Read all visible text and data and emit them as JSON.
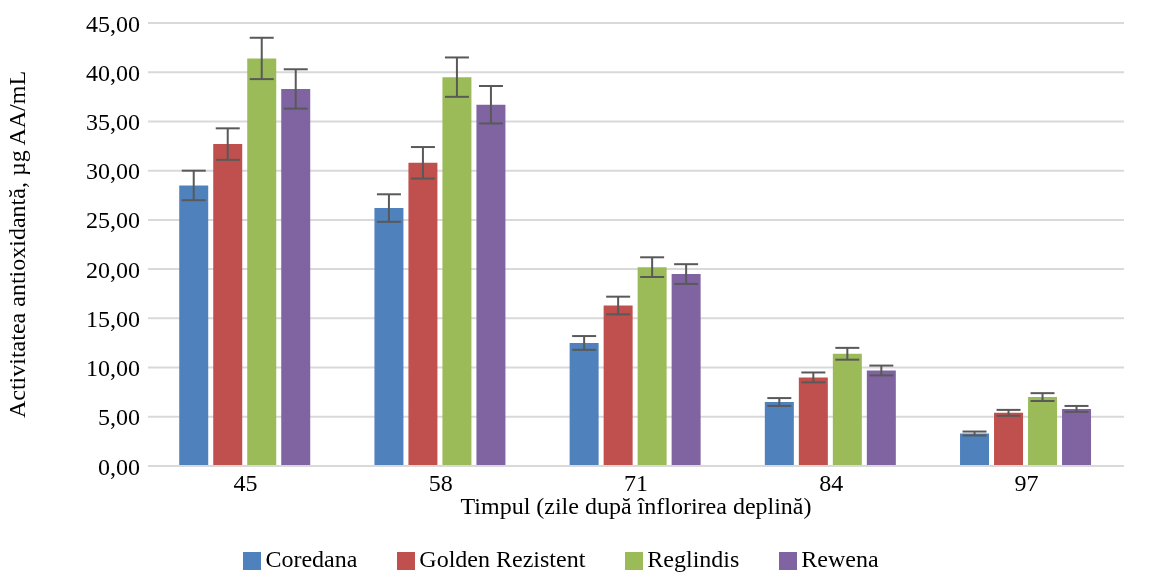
{
  "chart_data": {
    "type": "bar",
    "xlabel": "Timpul (zile după înflorirea deplină)",
    "ylabel": "Activitatea antioxidantă, µg AA/mL",
    "categories": [
      "45",
      "58",
      "71",
      "84",
      "97"
    ],
    "series": [
      {
        "name": "Coredana",
        "color": "#4f81bd",
        "values": [
          28.5,
          26.2,
          12.5,
          6.5,
          3.3
        ],
        "errors": [
          1.5,
          1.4,
          0.7,
          0.4,
          0.2
        ]
      },
      {
        "name": "Golden Rezistent",
        "color": "#c0504d",
        "values": [
          32.7,
          30.8,
          16.3,
          9.0,
          5.4
        ],
        "errors": [
          1.6,
          1.6,
          0.9,
          0.5,
          0.3
        ]
      },
      {
        "name": "Reglindis",
        "color": "#9bbb59",
        "values": [
          41.4,
          39.5,
          20.2,
          11.4,
          7.0
        ],
        "errors": [
          2.1,
          2.0,
          1.0,
          0.6,
          0.4
        ]
      },
      {
        "name": "Rewena",
        "color": "#8064a2",
        "values": [
          38.3,
          36.7,
          19.5,
          9.7,
          5.8
        ],
        "errors": [
          2.0,
          1.9,
          1.0,
          0.5,
          0.3
        ]
      }
    ],
    "ylim": [
      0,
      45
    ],
    "yticks": [
      {
        "value": 0,
        "label": "0,00"
      },
      {
        "value": 5,
        "label": "5,00"
      },
      {
        "value": 10,
        "label": "10,00"
      },
      {
        "value": 15,
        "label": "15,00"
      },
      {
        "value": 20,
        "label": "20,00"
      },
      {
        "value": 25,
        "label": "25,00"
      },
      {
        "value": 30,
        "label": "30,00"
      },
      {
        "value": 35,
        "label": "35,00"
      },
      {
        "value": 40,
        "label": "40,00"
      },
      {
        "value": 45,
        "label": "45,00"
      }
    ],
    "grid": "y",
    "legend": "bottom"
  }
}
